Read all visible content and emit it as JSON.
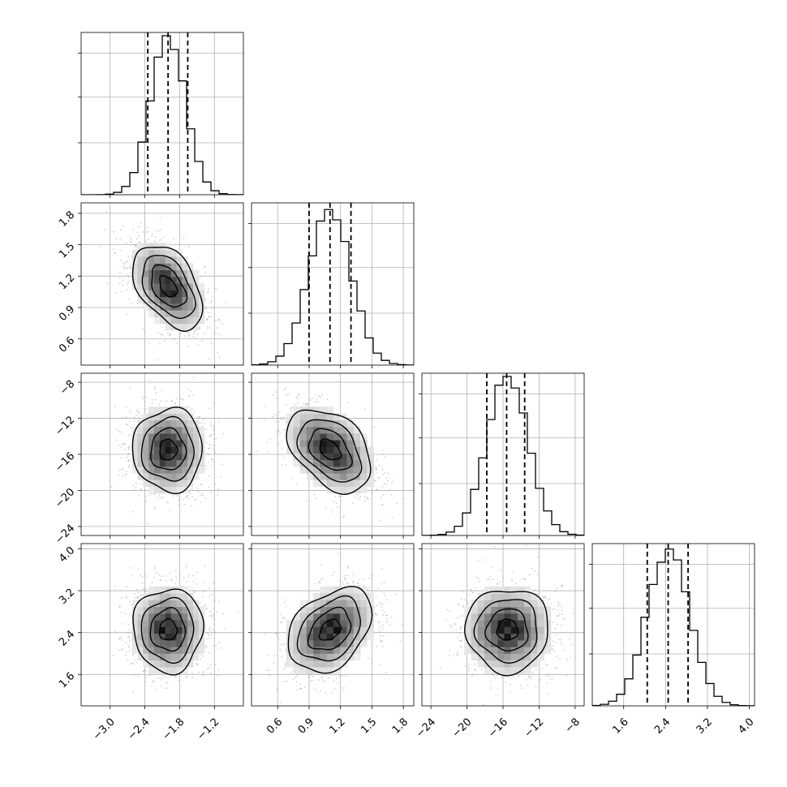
{
  "chart_data": {
    "type": "corner",
    "parameters": [
      {
        "range": [
          -3.5,
          -0.7
        ],
        "ticks": [
          -3.0,
          -2.4,
          -1.8,
          -1.2
        ],
        "tick_labels": [
          "−3.0",
          "−2.4",
          "−1.8",
          "−1.2"
        ],
        "mean": -2.0,
        "sd": 0.3,
        "quantiles": [
          -2.35,
          -2.0,
          -1.66
        ]
      },
      {
        "range": [
          0.35,
          1.9
        ],
        "ticks": [
          0.6,
          0.9,
          1.2,
          1.5,
          1.8
        ],
        "tick_labels": [
          "0.6",
          "0.9",
          "1.2",
          "1.5",
          "1.8"
        ],
        "mean": 1.1,
        "sd": 0.2,
        "quantiles": [
          0.9,
          1.1,
          1.3
        ]
      },
      {
        "range": [
          -25,
          -7
        ],
        "ticks": [
          -24,
          -20,
          -16,
          -12,
          -8
        ],
        "tick_labels": [
          "−24",
          "−20",
          "−16",
          "−12",
          "−8"
        ],
        "mean": -15.5,
        "sd": 2.3,
        "quantiles": [
          -17.8,
          -15.6,
          -13.6
        ]
      },
      {
        "range": [
          1.0,
          4.1
        ],
        "ticks": [
          1.6,
          2.4,
          3.2,
          4.0
        ],
        "tick_labels": [
          "1.6",
          "2.4",
          "3.2",
          "4.0"
        ],
        "mean": 2.45,
        "sd": 0.4,
        "quantiles": [
          2.05,
          2.45,
          2.83
        ]
      }
    ],
    "correlations": [
      [
        1.0,
        -0.45,
        0.0,
        0.0
      ],
      [
        -0.45,
        1.0,
        -0.4,
        0.35
      ],
      [
        0.0,
        -0.4,
        1.0,
        0.0
      ],
      [
        0.0,
        0.35,
        0.0,
        1.0
      ]
    ],
    "contour_levels": [
      0.5,
      1.0,
      1.5,
      2.0
    ],
    "histogram_bins": 20,
    "grid": true,
    "colors": {
      "hist": "#000000",
      "scatter": "#9a9a9a",
      "density": "#000000"
    }
  }
}
